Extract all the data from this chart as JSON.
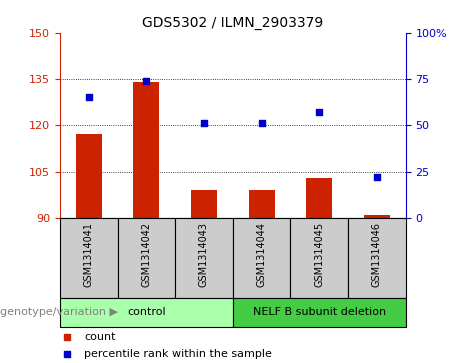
{
  "title": "GDS5302 / ILMN_2903379",
  "samples": [
    "GSM1314041",
    "GSM1314042",
    "GSM1314043",
    "GSM1314044",
    "GSM1314045",
    "GSM1314046"
  ],
  "counts": [
    117,
    134,
    99,
    99,
    103,
    91
  ],
  "percentiles": [
    65,
    74,
    51,
    51,
    57,
    22
  ],
  "ylim_left": [
    90,
    150
  ],
  "ylim_right": [
    0,
    100
  ],
  "yticks_left": [
    90,
    105,
    120,
    135,
    150
  ],
  "yticks_right": [
    0,
    25,
    50,
    75,
    100
  ],
  "bar_color": "#cc2200",
  "dot_color": "#0000cc",
  "grid_lines": [
    105,
    120,
    135
  ],
  "groups": [
    {
      "label": "control",
      "indices": [
        0,
        1,
        2
      ],
      "color": "#aaffaa"
    },
    {
      "label": "NELF B subunit deletion",
      "indices": [
        3,
        4,
        5
      ],
      "color": "#44cc44"
    }
  ],
  "group_label": "genotype/variation",
  "legend_items": [
    {
      "label": "count",
      "color": "#cc2200"
    },
    {
      "label": "percentile rank within the sample",
      "color": "#0000cc"
    }
  ],
  "sample_box_color": "#cccccc",
  "title_fontsize": 10,
  "tick_fontsize": 8,
  "label_fontsize": 8
}
